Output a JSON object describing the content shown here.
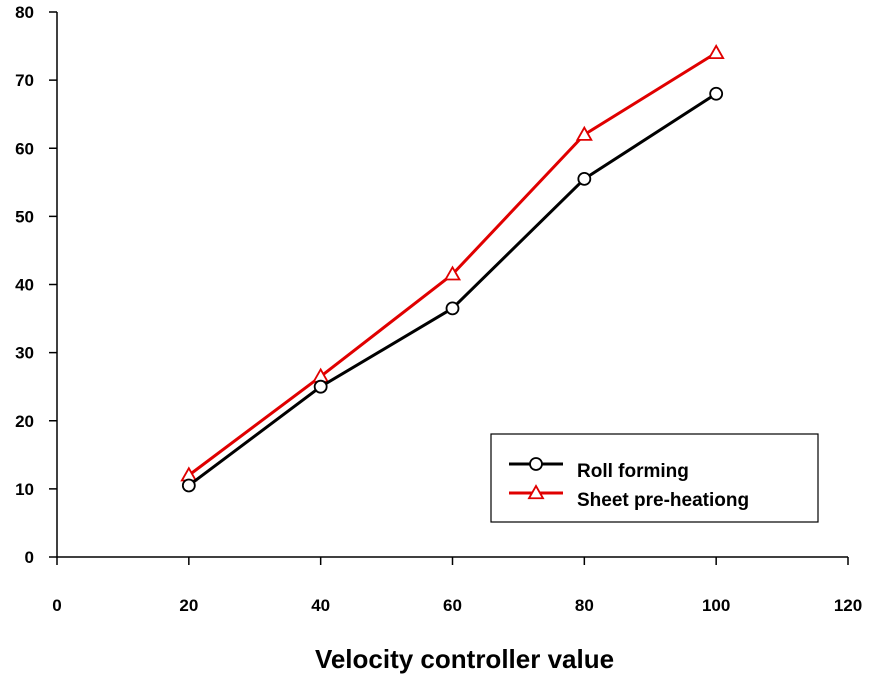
{
  "chart_data": {
    "type": "line",
    "title": "",
    "xlabel": "Velocity controller value",
    "ylabel": "",
    "xlim": [
      0,
      120
    ],
    "ylim": [
      0,
      80
    ],
    "x_ticks": [
      "0",
      "20",
      "40",
      "60",
      "80",
      "100",
      "120"
    ],
    "y_ticks": [
      "0",
      "10",
      "20",
      "30",
      "40",
      "50",
      "60",
      "70",
      "80"
    ],
    "grid": false,
    "legend_position": "bottom-right",
    "series": [
      {
        "name": "Roll forming",
        "color": "#000000",
        "marker": "circle",
        "x": [
          20,
          40,
          60,
          80,
          100
        ],
        "y": [
          10.5,
          25,
          36.5,
          55.5,
          68
        ]
      },
      {
        "name": "Sheet pre-heationg",
        "color": "#e00000",
        "marker": "triangle",
        "x": [
          20,
          40,
          60,
          80,
          100
        ],
        "y": [
          12,
          26.5,
          41.5,
          62,
          74
        ]
      }
    ]
  }
}
